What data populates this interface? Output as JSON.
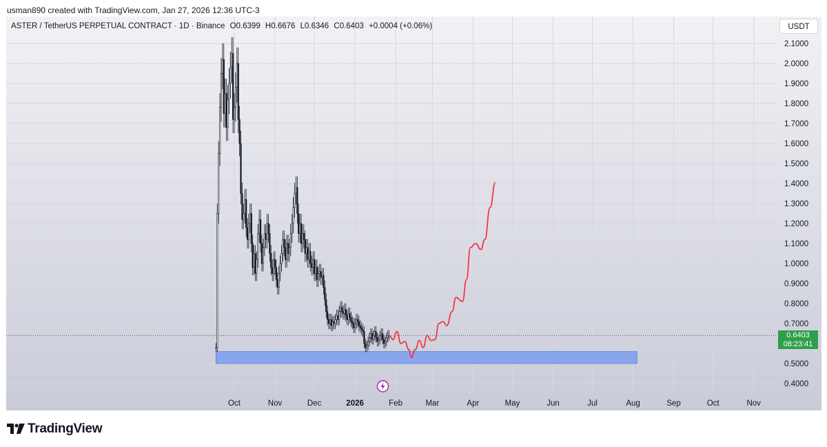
{
  "header": {
    "credit": "usman890 created with TradingView.com, Jan 27, 2026 12:36 UTC-3"
  },
  "legend": {
    "symbol": "ASTER / TetherUS PERPETUAL CONTRACT · 1D · Binance",
    "open": "O0.6399",
    "high": "H0.6676",
    "low": "L0.6346",
    "close": "C0.6403",
    "change": "+0.0004 (+0.06%)"
  },
  "currency_button": "USDT",
  "last_price": {
    "value": "0.6403",
    "countdown": "08:23:41",
    "color": "#2e9e4a"
  },
  "brand": {
    "name": "TradingView"
  },
  "colors": {
    "plot_bg_top": "#f2f2f5",
    "plot_bg_bottom": "#c9cbd8",
    "candle": "#131722",
    "projection": "#f23645",
    "zone": "#7b9ff0",
    "event_icon": "#9c27b0"
  },
  "chart_data": {
    "type": "candlestick",
    "y_axis": {
      "min": 0.35,
      "max": 2.15,
      "ticks": [
        "0.4000",
        "0.5000",
        "0.6000",
        "0.7000",
        "0.8000",
        "0.9000",
        "1.0000",
        "1.1000",
        "1.2000",
        "1.3000",
        "1.4000",
        "1.5000",
        "1.6000",
        "1.7000",
        "1.8000",
        "1.9000",
        "2.0000",
        "2.1000"
      ]
    },
    "x_axis": {
      "labels": [
        {
          "text": "Oct",
          "date": "2025-10-01"
        },
        {
          "text": "Nov",
          "date": "2025-11-01"
        },
        {
          "text": "Dec",
          "date": "2025-12-01"
        },
        {
          "text": "2026",
          "date": "2026-01-01",
          "bold": true
        },
        {
          "text": "Feb",
          "date": "2026-02-01"
        },
        {
          "text": "Mar",
          "date": "2026-03-01"
        },
        {
          "text": "Apr",
          "date": "2026-04-01"
        },
        {
          "text": "May",
          "date": "2026-05-01"
        },
        {
          "text": "Jun",
          "date": "2026-06-01"
        },
        {
          "text": "Jul",
          "date": "2026-07-01"
        },
        {
          "text": "Aug",
          "date": "2026-08-01"
        },
        {
          "text": "Sep",
          "date": "2026-09-01"
        },
        {
          "text": "Oct",
          "date": "2026-10-01"
        },
        {
          "text": "Nov",
          "date": "2026-11-01"
        }
      ]
    },
    "price_series_close": [
      [
        "2025-09-17",
        0.58
      ],
      [
        "2025-09-18",
        1.25
      ],
      [
        "2025-09-19",
        1.55
      ],
      [
        "2025-09-20",
        1.78
      ],
      [
        "2025-09-21",
        1.95
      ],
      [
        "2025-09-22",
        2.02
      ],
      [
        "2025-09-23",
        1.75
      ],
      [
        "2025-09-24",
        1.85
      ],
      [
        "2025-09-25",
        1.68
      ],
      [
        "2025-09-26",
        1.82
      ],
      [
        "2025-09-27",
        1.9
      ],
      [
        "2025-09-28",
        1.98
      ],
      [
        "2025-09-29",
        2.05
      ],
      [
        "2025-09-30",
        1.72
      ],
      [
        "2025-10-01",
        1.78
      ],
      [
        "2025-10-02",
        1.88
      ],
      [
        "2025-10-03",
        2.0
      ],
      [
        "2025-10-04",
        1.72
      ],
      [
        "2025-10-05",
        1.6
      ],
      [
        "2025-10-06",
        1.35
      ],
      [
        "2025-10-07",
        1.22
      ],
      [
        "2025-10-08",
        1.25
      ],
      [
        "2025-10-09",
        1.32
      ],
      [
        "2025-10-10",
        1.18
      ],
      [
        "2025-10-11",
        1.12
      ],
      [
        "2025-10-12",
        1.2
      ],
      [
        "2025-10-13",
        1.25
      ],
      [
        "2025-10-14",
        1.1
      ],
      [
        "2025-10-15",
        0.98
      ],
      [
        "2025-10-16",
        1.05
      ],
      [
        "2025-10-17",
        0.95
      ],
      [
        "2025-10-18",
        1.02
      ],
      [
        "2025-10-19",
        1.15
      ],
      [
        "2025-10-20",
        1.22
      ],
      [
        "2025-10-21",
        1.1
      ],
      [
        "2025-10-22",
        1.0
      ],
      [
        "2025-10-23",
        1.08
      ],
      [
        "2025-10-24",
        1.15
      ],
      [
        "2025-10-25",
        1.12
      ],
      [
        "2025-10-26",
        1.2
      ],
      [
        "2025-10-27",
        1.15
      ],
      [
        "2025-10-28",
        1.05
      ],
      [
        "2025-10-29",
        0.98
      ],
      [
        "2025-10-30",
        0.95
      ],
      [
        "2025-10-31",
        1.02
      ],
      [
        "2025-11-01",
        0.98
      ],
      [
        "2025-11-02",
        0.92
      ],
      [
        "2025-11-03",
        0.88
      ],
      [
        "2025-11-04",
        0.95
      ],
      [
        "2025-11-05",
        1.0
      ],
      [
        "2025-11-06",
        1.05
      ],
      [
        "2025-11-07",
        1.12
      ],
      [
        "2025-11-08",
        1.08
      ],
      [
        "2025-11-09",
        1.02
      ],
      [
        "2025-11-10",
        1.1
      ],
      [
        "2025-11-11",
        1.05
      ],
      [
        "2025-11-12",
        1.08
      ],
      [
        "2025-11-13",
        1.15
      ],
      [
        "2025-11-14",
        1.2
      ],
      [
        "2025-11-15",
        1.28
      ],
      [
        "2025-11-16",
        1.35
      ],
      [
        "2025-11-17",
        1.38
      ],
      [
        "2025-11-18",
        1.25
      ],
      [
        "2025-11-19",
        1.15
      ],
      [
        "2025-11-20",
        1.2
      ],
      [
        "2025-11-21",
        1.1
      ],
      [
        "2025-11-22",
        1.15
      ],
      [
        "2025-11-23",
        1.12
      ],
      [
        "2025-11-24",
        1.05
      ],
      [
        "2025-11-25",
        1.08
      ],
      [
        "2025-11-26",
        1.02
      ],
      [
        "2025-11-27",
        1.06
      ],
      [
        "2025-11-28",
        1.0
      ],
      [
        "2025-11-29",
        0.98
      ],
      [
        "2025-11-30",
        1.02
      ],
      [
        "2025-12-01",
        0.95
      ],
      [
        "2025-12-02",
        0.98
      ],
      [
        "2025-12-03",
        0.92
      ],
      [
        "2025-12-04",
        0.95
      ],
      [
        "2025-12-05",
        0.96
      ],
      [
        "2025-12-06",
        0.93
      ],
      [
        "2025-12-07",
        0.94
      ],
      [
        "2025-12-08",
        0.88
      ],
      [
        "2025-12-09",
        0.82
      ],
      [
        "2025-12-10",
        0.76
      ],
      [
        "2025-12-11",
        0.72
      ],
      [
        "2025-12-12",
        0.7
      ],
      [
        "2025-12-13",
        0.72
      ],
      [
        "2025-12-14",
        0.69
      ],
      [
        "2025-12-15",
        0.71
      ],
      [
        "2025-12-16",
        0.7
      ],
      [
        "2025-12-17",
        0.72
      ],
      [
        "2025-12-18",
        0.74
      ],
      [
        "2025-12-19",
        0.72
      ],
      [
        "2025-12-20",
        0.76
      ],
      [
        "2025-12-21",
        0.78
      ],
      [
        "2025-12-22",
        0.76
      ],
      [
        "2025-12-23",
        0.75
      ],
      [
        "2025-12-24",
        0.77
      ],
      [
        "2025-12-25",
        0.74
      ],
      [
        "2025-12-26",
        0.72
      ],
      [
        "2025-12-27",
        0.75
      ],
      [
        "2025-12-28",
        0.73
      ],
      [
        "2025-12-29",
        0.71
      ],
      [
        "2025-12-30",
        0.7
      ],
      [
        "2025-12-31",
        0.68
      ],
      [
        "2026-01-01",
        0.7
      ],
      [
        "2026-01-02",
        0.72
      ],
      [
        "2026-01-03",
        0.71
      ],
      [
        "2026-01-04",
        0.69
      ],
      [
        "2026-01-05",
        0.68
      ],
      [
        "2026-01-06",
        0.67
      ],
      [
        "2026-01-07",
        0.66
      ],
      [
        "2026-01-08",
        0.6
      ],
      [
        "2026-01-09",
        0.58
      ],
      [
        "2026-01-10",
        0.59
      ],
      [
        "2026-01-11",
        0.61
      ],
      [
        "2026-01-12",
        0.63
      ],
      [
        "2026-01-13",
        0.65
      ],
      [
        "2026-01-14",
        0.62
      ],
      [
        "2026-01-15",
        0.64
      ],
      [
        "2026-01-16",
        0.66
      ],
      [
        "2026-01-17",
        0.63
      ],
      [
        "2026-01-18",
        0.61
      ],
      [
        "2026-01-19",
        0.62
      ],
      [
        "2026-01-20",
        0.64
      ],
      [
        "2026-01-21",
        0.65
      ],
      [
        "2026-01-22",
        0.62
      ],
      [
        "2026-01-23",
        0.6
      ],
      [
        "2026-01-24",
        0.61
      ],
      [
        "2026-01-25",
        0.63
      ],
      [
        "2026-01-26",
        0.64
      ],
      [
        "2026-01-27",
        0.6403
      ]
    ],
    "projection_path": [
      [
        "2026-01-27",
        0.64
      ],
      [
        "2026-01-30",
        0.62
      ],
      [
        "2026-02-02",
        0.66
      ],
      [
        "2026-02-05",
        0.6
      ],
      [
        "2026-02-08",
        0.61
      ],
      [
        "2026-02-11",
        0.57
      ],
      [
        "2026-02-13",
        0.53
      ],
      [
        "2026-02-16",
        0.57
      ],
      [
        "2026-02-19",
        0.615
      ],
      [
        "2026-02-22",
        0.58
      ],
      [
        "2026-02-25",
        0.64
      ],
      [
        "2026-02-28",
        0.615
      ],
      [
        "2026-03-03",
        0.62
      ],
      [
        "2026-03-06",
        0.7
      ],
      [
        "2026-03-09",
        0.71
      ],
      [
        "2026-03-12",
        0.69
      ],
      [
        "2026-03-16",
        0.76
      ],
      [
        "2026-03-19",
        0.83
      ],
      [
        "2026-03-24",
        0.81
      ],
      [
        "2026-03-27",
        0.92
      ],
      [
        "2026-03-30",
        1.08
      ],
      [
        "2026-04-03",
        1.1
      ],
      [
        "2026-04-07",
        1.07
      ],
      [
        "2026-04-10",
        1.12
      ],
      [
        "2026-04-14",
        1.28
      ],
      [
        "2026-04-18",
        1.405
      ]
    ],
    "support_zone": {
      "from_date": "2025-09-17",
      "to_date": "2026-08-04",
      "low": 0.5,
      "high": 0.56
    },
    "last_price_line": 0.6403,
    "event_marker": {
      "date": "2026-01-18",
      "icon": "lightning-icon"
    }
  }
}
